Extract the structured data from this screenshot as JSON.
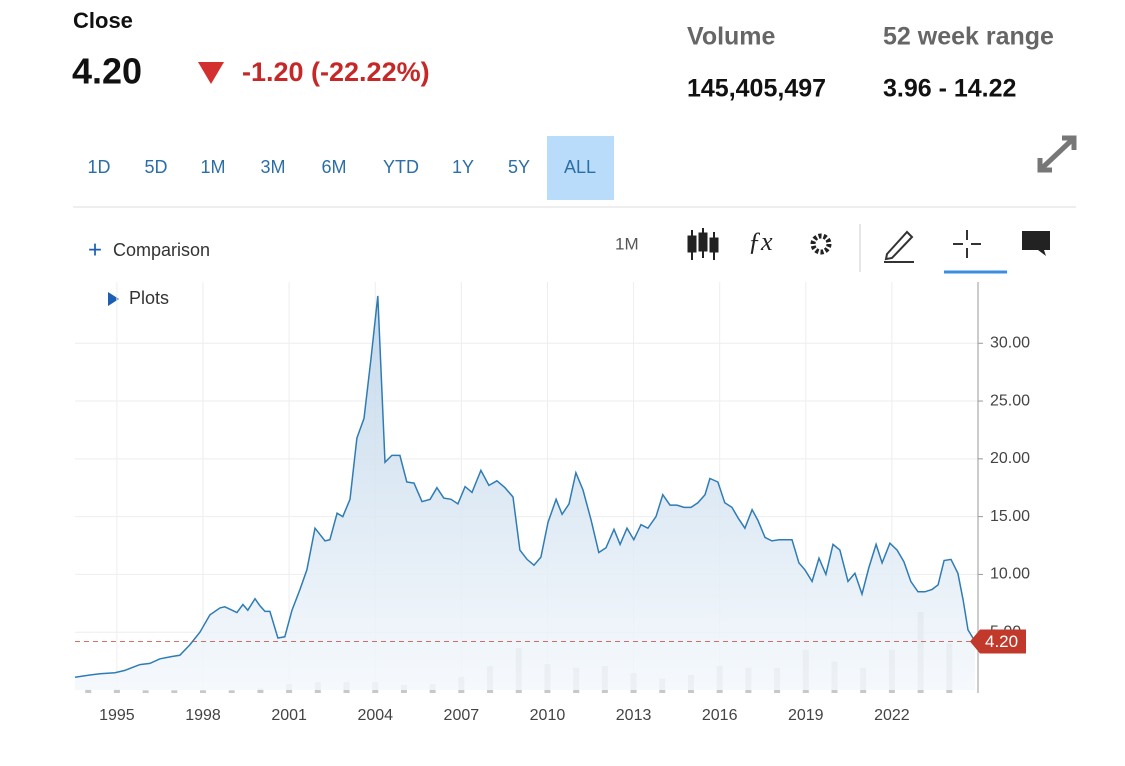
{
  "header": {
    "close_label": "Close",
    "price": "4.20",
    "change": "-1.20 (-22.22%)",
    "volume_label": "Volume",
    "volume": "145,405,497",
    "range_label": "52 week range",
    "range": "3.96 - 14.22"
  },
  "ranges": [
    "1D",
    "5D",
    "1M",
    "3M",
    "6M",
    "YTD",
    "1Y",
    "5Y",
    "ALL"
  ],
  "selected_range": "ALL",
  "toolbar": {
    "comparison": "Comparison",
    "interval": "1M",
    "plots": "Plots"
  },
  "chart_data": {
    "type": "line",
    "series": [
      {
        "name": "Close",
        "color": "#2f7cb5",
        "x": [
          1993.54,
          1994.06,
          1994.41,
          1994.93,
          1995.28,
          1995.8,
          1996.15,
          1996.5,
          1996.92,
          1997.19,
          1997.54,
          1997.89,
          1998.24,
          1998.59,
          1998.76,
          1999.01,
          1999.18,
          1999.39,
          1999.56,
          1999.81,
          1999.98,
          2000.16,
          2000.33,
          2000.61,
          2000.85,
          2001.1,
          2001.38,
          2001.62,
          2001.9,
          2002.0,
          2002.25,
          2002.42,
          2002.67,
          2002.87,
          2003.12,
          2003.36,
          2003.61,
          2003.85,
          2004.09,
          2004.34,
          2004.58,
          2004.86,
          2005.1,
          2005.35,
          2005.63,
          2005.91,
          2006.15,
          2006.39,
          2006.64,
          2006.88,
          2007.13,
          2007.37,
          2007.68,
          2007.96,
          2008.24,
          2008.52,
          2008.8,
          2009.04,
          2009.29,
          2009.53,
          2009.77,
          2010.02,
          2010.3,
          2010.51,
          2010.75,
          2010.99,
          2011.24,
          2011.52,
          2011.79,
          2012.04,
          2012.32,
          2012.53,
          2012.77,
          2013.01,
          2013.26,
          2013.5,
          2013.78,
          2014.02,
          2014.27,
          2014.51,
          2014.76,
          2015.0,
          2015.24,
          2015.49,
          2015.66,
          2015.94,
          2016.18,
          2016.43,
          2016.64,
          2016.88,
          2017.13,
          2017.33,
          2017.58,
          2017.82,
          2018.07,
          2018.31,
          2018.52,
          2018.76,
          2018.97,
          2019.22,
          2019.46,
          2019.7,
          2019.95,
          2020.19,
          2020.47,
          2020.71,
          2020.96,
          2021.2,
          2021.45,
          2021.66,
          2021.93,
          2022.18,
          2022.42,
          2022.66,
          2022.91,
          2023.15,
          2023.4,
          2023.61,
          2023.82,
          2024.06,
          2024.3,
          2024.48,
          2024.65,
          2024.9
        ],
        "values": [
          1.1,
          1.3,
          1.4,
          1.5,
          1.7,
          2.2,
          2.3,
          2.7,
          2.9,
          3.0,
          3.9,
          5.0,
          6.5,
          7.1,
          7.2,
          6.9,
          6.7,
          7.4,
          6.9,
          7.9,
          7.3,
          6.8,
          6.8,
          4.5,
          4.6,
          6.9,
          8.7,
          10.4,
          14.0,
          13.7,
          12.9,
          13.0,
          15.3,
          15.0,
          16.5,
          21.8,
          23.5,
          28.6,
          34.1,
          19.7,
          20.3,
          20.3,
          18.0,
          17.9,
          16.3,
          16.5,
          17.5,
          16.6,
          16.5,
          16.1,
          17.6,
          17.1,
          19.0,
          17.7,
          18.1,
          17.5,
          16.7,
          12.1,
          11.3,
          10.8,
          11.5,
          14.5,
          16.5,
          15.2,
          16.1,
          18.8,
          17.3,
          14.7,
          11.9,
          12.3,
          13.9,
          12.6,
          14.0,
          13.0,
          14.3,
          14.0,
          15.0,
          16.9,
          16.0,
          16.0,
          15.8,
          15.8,
          16.2,
          16.9,
          18.3,
          18.0,
          16.2,
          15.8,
          14.9,
          14.0,
          15.6,
          14.7,
          13.2,
          12.9,
          13.0,
          13.0,
          13.0,
          11.0,
          10.4,
          9.4,
          11.4,
          10.0,
          12.6,
          12.1,
          9.4,
          10.1,
          8.3,
          10.6,
          12.6,
          11.0,
          12.7,
          12.1,
          11.1,
          9.4,
          8.5,
          8.5,
          8.7,
          9.1,
          11.2,
          11.3,
          10.1,
          7.8,
          5.2,
          4.2
        ]
      }
    ],
    "volume": {
      "color": "#c8c8c8",
      "x": [
        1994,
        1995,
        1996,
        1997,
        1998,
        1999,
        2000,
        2001,
        2002,
        2003,
        2004,
        2005,
        2006,
        2007,
        2008,
        2009,
        2010,
        2011,
        2012,
        2013,
        2014,
        2015,
        2016,
        2017,
        2018,
        2019,
        2020,
        2021,
        2022,
        2023,
        2024
      ],
      "values": [
        4,
        4,
        3,
        3,
        3,
        3,
        5,
        10,
        12,
        12,
        12,
        9,
        10,
        18,
        30,
        50,
        32,
        28,
        30,
        22,
        16,
        20,
        30,
        28,
        28,
        48,
        35,
        28,
        48,
        90,
        55
      ],
      "ylim": [
        0,
        100
      ]
    },
    "last": {
      "value": 4.2,
      "label": "4.20",
      "color": "#c0392b"
    },
    "xlim": [
      1993.54,
      2025.0
    ],
    "xticks": [
      1995,
      1998,
      2001,
      2004,
      2007,
      2010,
      2013,
      2016,
      2019,
      2022
    ],
    "ylim": [
      0,
      35.3
    ],
    "yticks": [
      {
        "value": 5,
        "label": "5.00"
      },
      {
        "value": 10,
        "label": "10.00"
      },
      {
        "value": 15,
        "label": "15.00"
      },
      {
        "value": 20,
        "label": "20.00"
      },
      {
        "value": 25,
        "label": "25.00"
      },
      {
        "value": 30,
        "label": "30.00"
      }
    ],
    "grid": true
  }
}
